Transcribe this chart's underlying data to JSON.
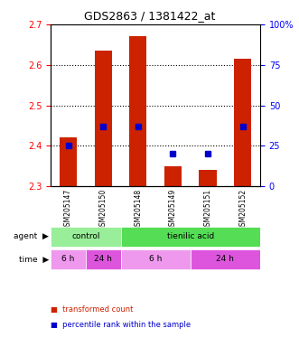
{
  "title": "GDS2863 / 1381422_at",
  "samples": [
    "GSM205147",
    "GSM205150",
    "GSM205148",
    "GSM205149",
    "GSM205151",
    "GSM205152"
  ],
  "bar_values": [
    2.42,
    2.635,
    2.67,
    2.35,
    2.34,
    2.615
  ],
  "bar_bottom": 2.3,
  "percentile_values": [
    25,
    37,
    37,
    20,
    20,
    37
  ],
  "ylim_left": [
    2.3,
    2.7
  ],
  "ylim_right": [
    0,
    100
  ],
  "yticks_left": [
    2.3,
    2.4,
    2.5,
    2.6,
    2.7
  ],
  "yticks_right": [
    0,
    25,
    50,
    75,
    100
  ],
  "bar_color": "#cc2200",
  "percentile_color": "#0000cc",
  "agent_groups": [
    {
      "label": "control",
      "start": 0,
      "end": 2,
      "color": "#99ee99"
    },
    {
      "label": "tienilic acid",
      "start": 2,
      "end": 6,
      "color": "#55dd55"
    }
  ],
  "time_groups": [
    {
      "label": "6 h",
      "start": 0,
      "end": 1,
      "color": "#ee99ee"
    },
    {
      "label": "24 h",
      "start": 1,
      "end": 2,
      "color": "#dd55dd"
    },
    {
      "label": "6 h",
      "start": 2,
      "end": 4,
      "color": "#ee99ee"
    },
    {
      "label": "24 h",
      "start": 4,
      "end": 6,
      "color": "#dd55dd"
    }
  ],
  "legend_items": [
    {
      "label": "transformed count",
      "color": "#cc2200"
    },
    {
      "label": "percentile rank within the sample",
      "color": "#0000cc"
    }
  ],
  "grid_color": "black",
  "background_plot": "#ffffff",
  "background_label": "#cccccc"
}
